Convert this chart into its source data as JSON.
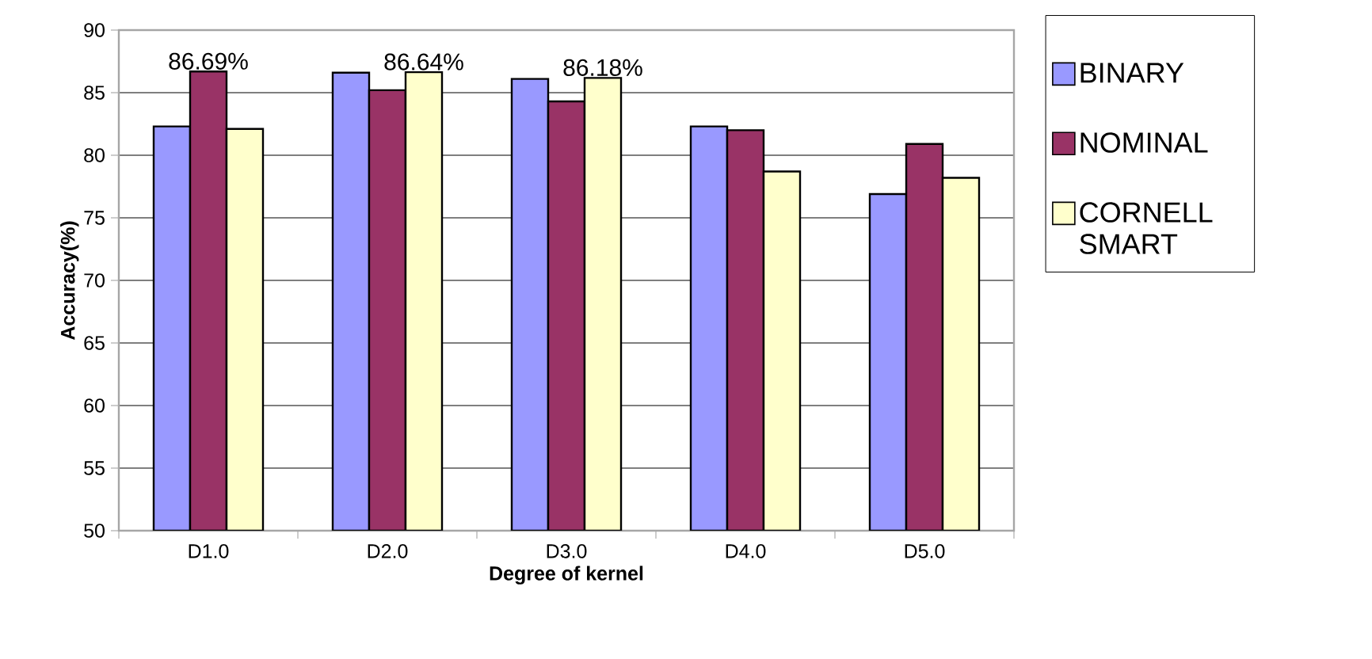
{
  "chart_data": {
    "type": "bar",
    "xlabel": "Degree of kernel",
    "ylabel": "Accuracy(%)",
    "categories": [
      "D1.0",
      "D2.0",
      "D3.0",
      "D4.0",
      "D5.0"
    ],
    "series": [
      {
        "name": "BINARY",
        "color": "#9999ff",
        "values": [
          82.3,
          86.6,
          86.1,
          82.3,
          76.9
        ]
      },
      {
        "name": "NOMINAL",
        "color": "#993366",
        "values": [
          86.69,
          85.2,
          84.3,
          82.0,
          80.9
        ],
        "value_labels": [
          "86.69%",
          null,
          null,
          null,
          null
        ]
      },
      {
        "name": "CORNELL SMART",
        "color": "#ffffcc",
        "values": [
          82.1,
          86.64,
          86.18,
          78.7,
          78.2
        ],
        "value_labels": [
          null,
          "86.64%",
          "86.18%",
          null,
          null
        ]
      }
    ],
    "ylim": [
      50,
      90
    ],
    "yticks": [
      50,
      55,
      60,
      65,
      70,
      75,
      80,
      85,
      90
    ],
    "grid": "y",
    "legend": "right"
  }
}
